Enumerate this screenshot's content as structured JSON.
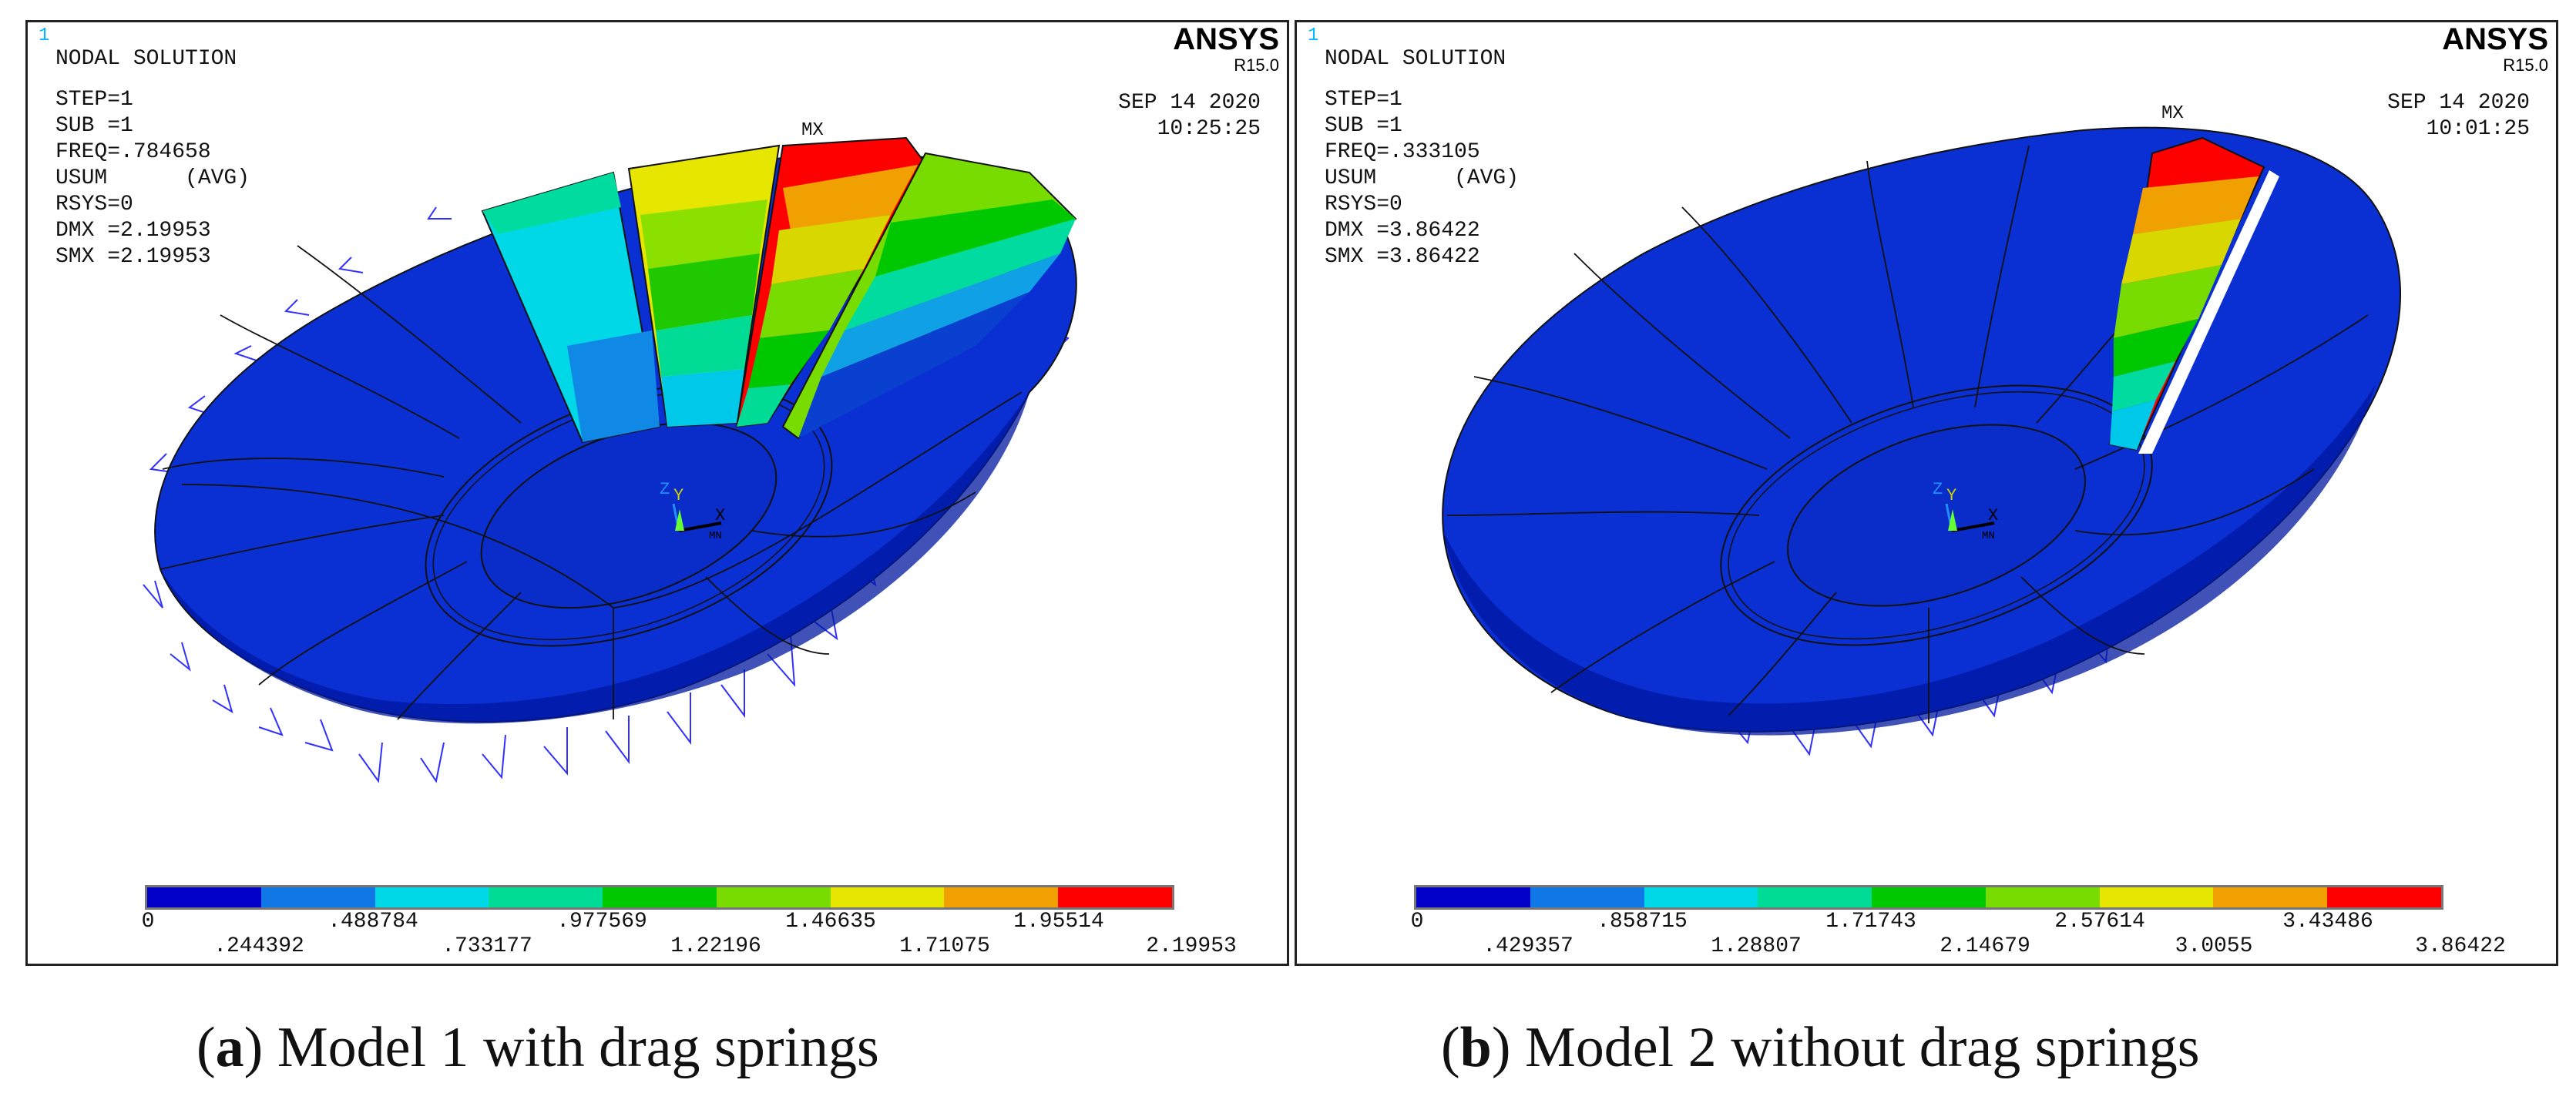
{
  "colors": {
    "bands": [
      "#0000c8",
      "#0f78e6",
      "#00d8e8",
      "#00dc96",
      "#00c800",
      "#78dc00",
      "#e6e600",
      "#f0a000",
      "#ff0000"
    ],
    "panel_border": "#222222",
    "spring_blue": "#3030ff",
    "body_blue": "#0a28c8"
  },
  "panels": [
    {
      "id": "a",
      "window_index": "1",
      "title": "NODAL SOLUTION",
      "step": "STEP=1",
      "sub": "SUB =1",
      "freq": "FREQ=.784658",
      "usum": "USUM      (AVG)",
      "rsys": "RSYS=0",
      "dmx": "DMX =2.19953",
      "smx": "SMX =2.19953",
      "brand": "ANSYS",
      "version": "R15.0",
      "date": "SEP 14 2020",
      "time": "10:25:25",
      "mx_label": "MX",
      "axis_z": "Z",
      "axis_y": "Y",
      "axis_x": "X",
      "axis_mn": "MN",
      "legend_row1": [
        "0",
        ".488784",
        ".977569",
        "1.46635",
        "1.95514"
      ],
      "legend_row2": [
        ".244392",
        ".733177",
        "1.22196",
        "1.71075",
        "2.19953"
      ],
      "caption_letter": "a",
      "caption_text": "Model 1 with drag springs"
    },
    {
      "id": "b",
      "window_index": "1",
      "title": "NODAL SOLUTION",
      "step": "STEP=1",
      "sub": "SUB =1",
      "freq": "FREQ=.333105",
      "usum": "USUM      (AVG)",
      "rsys": "RSYS=0",
      "dmx": "DMX =3.86422",
      "smx": "SMX =3.86422",
      "brand": "ANSYS",
      "version": "R15.0",
      "date": "SEP 14 2020",
      "time": "10:01:25",
      "mx_label": "MX",
      "axis_z": "Z",
      "axis_y": "Y",
      "axis_x": "X",
      "axis_mn": "MN",
      "legend_row1": [
        "0",
        ".858715",
        "1.71743",
        "2.57614",
        "3.43486"
      ],
      "legend_row2": [
        ".429357",
        "1.28807",
        "2.14679",
        "3.0055",
        "3.86422"
      ],
      "caption_letter": "b",
      "caption_text": "Model 2 without drag springs"
    }
  ]
}
